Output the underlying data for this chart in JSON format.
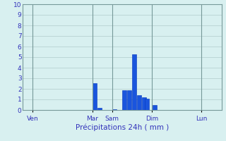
{
  "xlabel": "Précipitations 24h ( mm )",
  "background_color": "#d8f0f0",
  "bar_color": "#1a55dd",
  "bar_edge_color": "#0033bb",
  "grid_color": "#b0cccc",
  "text_color": "#3333bb",
  "ylim": [
    0,
    10
  ],
  "yticks": [
    0,
    1,
    2,
    3,
    4,
    5,
    6,
    7,
    8,
    9,
    10
  ],
  "day_labels": [
    "Ven",
    "Mar",
    "Sam",
    "Dim",
    "Lun"
  ],
  "day_positions": [
    2,
    14,
    18,
    26,
    36
  ],
  "num_slots": 40,
  "xlim": [
    0,
    40
  ],
  "bars": [
    {
      "x": 14.5,
      "height": 2.55
    },
    {
      "x": 15.5,
      "height": 0.2
    },
    {
      "x": 18.5,
      "height": 0.1
    },
    {
      "x": 20.5,
      "height": 1.85
    },
    {
      "x": 21.5,
      "height": 1.85
    },
    {
      "x": 22.5,
      "height": 5.3
    },
    {
      "x": 23.5,
      "height": 1.4
    },
    {
      "x": 24.5,
      "height": 1.2
    },
    {
      "x": 25.0,
      "height": 1.1
    },
    {
      "x": 26.5,
      "height": 0.5
    }
  ]
}
